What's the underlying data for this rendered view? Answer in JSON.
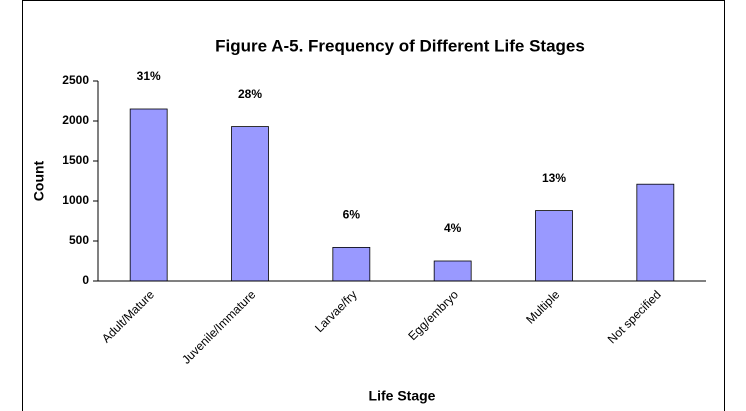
{
  "chart_data": {
    "type": "bar",
    "title": "Figure A-5.  Frequency of Different Life Stages",
    "x_label": "Life Stage",
    "y_label": "Count",
    "categories": [
      "Adult/Mature",
      "Juvenile/Immature",
      "Larvae/fry",
      "Egg/embryo",
      "Multiple",
      "Not specified"
    ],
    "values": [
      2150,
      1930,
      420,
      250,
      880,
      1210
    ],
    "bar_labels": [
      "31%",
      "28%",
      "6%",
      "4%",
      "13%",
      null
    ],
    "color": "#9999ff",
    "ylim": [
      0,
      2500
    ],
    "yticks": [
      0,
      500,
      1000,
      1500,
      2000,
      2500
    ],
    "grid": false
  }
}
